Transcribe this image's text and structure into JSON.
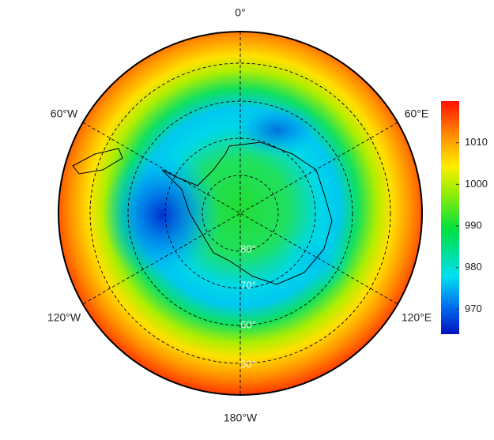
{
  "map": {
    "longitude_labels": [
      "0°",
      "60°E",
      "120°E",
      "180°W",
      "120°W",
      "60°W"
    ],
    "latitude_labels": [
      "80°",
      "70°",
      "60°",
      "50°"
    ]
  },
  "colorbar": {
    "ylim": [
      964,
      1020
    ],
    "yticks": [
      970,
      980,
      990,
      1000,
      1010
    ]
  }
}
